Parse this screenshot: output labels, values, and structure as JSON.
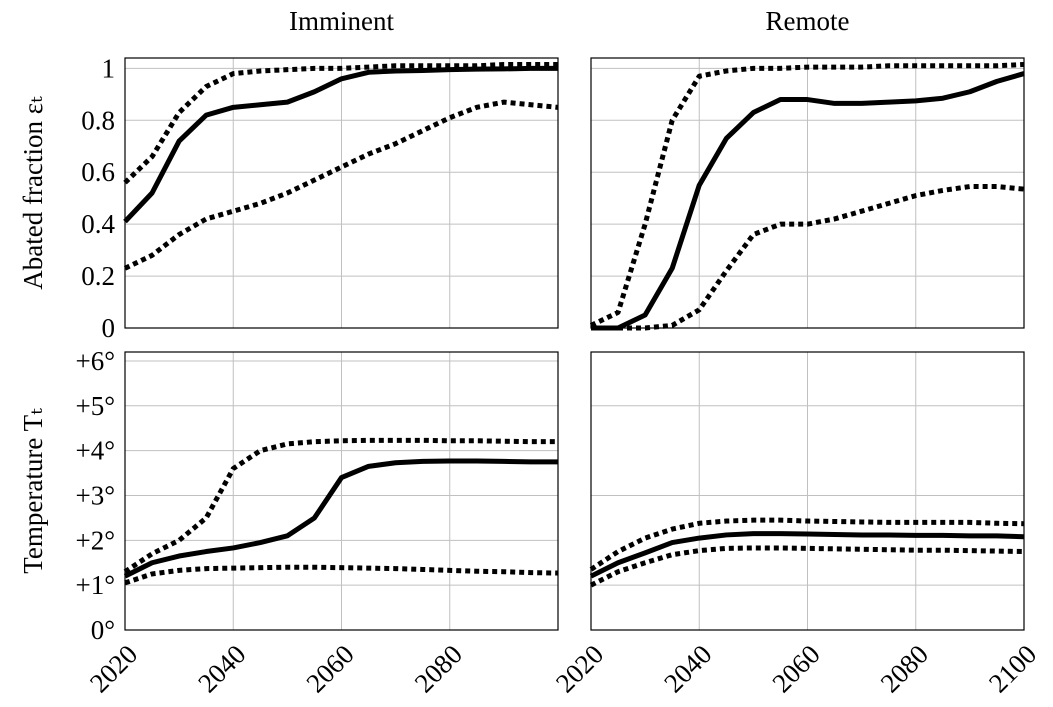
{
  "chart_data": [
    {
      "type": "line",
      "title": "Imminent",
      "ylabel": "Abated fraction εₜ",
      "x": [
        2020,
        2025,
        2030,
        2035,
        2040,
        2045,
        2050,
        2055,
        2060,
        2065,
        2070,
        2075,
        2080,
        2085,
        2090,
        2095,
        2100
      ],
      "xlim": [
        2020,
        2100
      ],
      "xticks": [
        2020,
        2040,
        2060,
        2080
      ],
      "xtick_labels": false,
      "ylim": [
        0,
        1.04
      ],
      "yticks": [
        0,
        0.2,
        0.4,
        0.6,
        0.8,
        1
      ],
      "ytick_labels": true,
      "grid": true,
      "series": [
        {
          "style": "solid",
          "color": "#000000",
          "values": [
            0.41,
            0.52,
            0.72,
            0.82,
            0.85,
            0.86,
            0.87,
            0.91,
            0.96,
            0.985,
            0.99,
            0.992,
            0.995,
            0.997,
            0.998,
            1.0,
            1.0
          ]
        },
        {
          "style": "dotted",
          "color": "#000000",
          "values": [
            0.56,
            0.66,
            0.83,
            0.93,
            0.98,
            0.99,
            0.995,
            1.0,
            1.0,
            1.005,
            1.01,
            1.01,
            1.01,
            1.01,
            1.015,
            1.015,
            1.015
          ]
        },
        {
          "style": "dotted",
          "color": "#000000",
          "values": [
            0.23,
            0.28,
            0.36,
            0.42,
            0.45,
            0.48,
            0.52,
            0.57,
            0.62,
            0.67,
            0.71,
            0.76,
            0.81,
            0.85,
            0.87,
            0.86,
            0.85
          ]
        }
      ]
    },
    {
      "type": "line",
      "title": "Remote",
      "x": [
        2020,
        2025,
        2030,
        2035,
        2040,
        2045,
        2050,
        2055,
        2060,
        2065,
        2070,
        2075,
        2080,
        2085,
        2090,
        2095,
        2100
      ],
      "xlim": [
        2020,
        2100
      ],
      "xticks": [
        2020,
        2040,
        2060,
        2080,
        2100
      ],
      "xtick_labels": false,
      "ylim": [
        0,
        1.04
      ],
      "yticks": [
        0,
        0.2,
        0.4,
        0.6,
        0.8,
        1
      ],
      "ytick_labels": false,
      "grid": true,
      "series": [
        {
          "style": "solid",
          "color": "#000000",
          "values": [
            0,
            0,
            0.05,
            0.23,
            0.55,
            0.73,
            0.83,
            0.88,
            0.88,
            0.865,
            0.865,
            0.87,
            0.875,
            0.885,
            0.91,
            0.95,
            0.98
          ]
        },
        {
          "style": "dotted",
          "color": "#000000",
          "values": [
            0.01,
            0.06,
            0.4,
            0.8,
            0.97,
            0.99,
            1.0,
            1.0,
            1.005,
            1.005,
            1.005,
            1.01,
            1.01,
            1.01,
            1.01,
            1.01,
            1.015
          ]
        },
        {
          "style": "dotted",
          "color": "#000000",
          "values": [
            0,
            0,
            0,
            0.01,
            0.07,
            0.22,
            0.36,
            0.4,
            0.4,
            0.42,
            0.45,
            0.48,
            0.51,
            0.53,
            0.545,
            0.545,
            0.535
          ]
        }
      ]
    },
    {
      "type": "line",
      "ylabel": "Temperature Tₜ",
      "x": [
        2020,
        2025,
        2030,
        2035,
        2040,
        2045,
        2050,
        2055,
        2060,
        2065,
        2070,
        2075,
        2080,
        2085,
        2090,
        2095,
        2100
      ],
      "xlim": [
        2020,
        2100
      ],
      "xticks": [
        2020,
        2040,
        2060,
        2080
      ],
      "xtick_labels": true,
      "ylim": [
        0,
        6.2
      ],
      "yticks": [
        {
          "value": 0,
          "label": "0°"
        },
        {
          "value": 1,
          "label": "+1°"
        },
        {
          "value": 2,
          "label": "+2°"
        },
        {
          "value": 3,
          "label": "+3°"
        },
        {
          "value": 4,
          "label": "+4°"
        },
        {
          "value": 5,
          "label": "+5°"
        },
        {
          "value": 6,
          "label": "+6°"
        }
      ],
      "ytick_labels": true,
      "grid": true,
      "series": [
        {
          "style": "solid",
          "color": "#000000",
          "values": [
            1.2,
            1.5,
            1.65,
            1.75,
            1.83,
            1.95,
            2.1,
            2.5,
            3.4,
            3.65,
            3.73,
            3.76,
            3.77,
            3.77,
            3.76,
            3.75,
            3.75
          ]
        },
        {
          "style": "dotted",
          "color": "#000000",
          "values": [
            1.3,
            1.7,
            2.0,
            2.5,
            3.6,
            4.0,
            4.15,
            4.2,
            4.22,
            4.23,
            4.23,
            4.23,
            4.22,
            4.22,
            4.21,
            4.2,
            4.2
          ]
        },
        {
          "style": "dotted",
          "color": "#000000",
          "values": [
            1.05,
            1.25,
            1.33,
            1.37,
            1.38,
            1.39,
            1.4,
            1.4,
            1.39,
            1.38,
            1.37,
            1.35,
            1.33,
            1.31,
            1.3,
            1.28,
            1.27
          ]
        }
      ]
    },
    {
      "type": "line",
      "x": [
        2020,
        2025,
        2030,
        2035,
        2040,
        2045,
        2050,
        2055,
        2060,
        2065,
        2070,
        2075,
        2080,
        2085,
        2090,
        2095,
        2100
      ],
      "xlim": [
        2020,
        2100
      ],
      "xticks": [
        2020,
        2040,
        2060,
        2080,
        2100
      ],
      "xtick_labels": true,
      "ylim": [
        0,
        6.2
      ],
      "yticks": [
        1,
        3,
        5
      ],
      "ytick_labels": false,
      "grid": true,
      "series": [
        {
          "style": "solid",
          "color": "#000000",
          "values": [
            1.2,
            1.5,
            1.72,
            1.95,
            2.05,
            2.12,
            2.15,
            2.15,
            2.14,
            2.13,
            2.12,
            2.12,
            2.11,
            2.11,
            2.1,
            2.1,
            2.08
          ]
        },
        {
          "style": "dotted",
          "color": "#000000",
          "values": [
            1.35,
            1.75,
            2.05,
            2.25,
            2.38,
            2.43,
            2.45,
            2.45,
            2.43,
            2.42,
            2.41,
            2.4,
            2.4,
            2.4,
            2.4,
            2.38,
            2.37
          ]
        },
        {
          "style": "dotted",
          "color": "#000000",
          "values": [
            1.0,
            1.3,
            1.5,
            1.68,
            1.77,
            1.82,
            1.83,
            1.83,
            1.82,
            1.81,
            1.8,
            1.79,
            1.78,
            1.78,
            1.77,
            1.76,
            1.75
          ]
        }
      ]
    }
  ]
}
